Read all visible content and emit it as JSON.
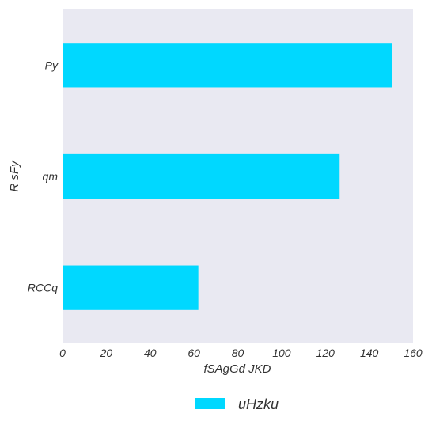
{
  "chart_data": {
    "type": "bar",
    "orientation": "horizontal",
    "categories": [
      "Py",
      "qm",
      "RCCq"
    ],
    "series": [
      {
        "name": "uHzku",
        "values": [
          150.5,
          126.5,
          62
        ]
      }
    ],
    "xlabel": "fSAgGd  JKD",
    "ylabel": "R sFy",
    "xlim": [
      0,
      160
    ],
    "xticks": [
      0,
      20,
      40,
      60,
      80,
      100,
      120,
      140,
      160
    ],
    "grid": false,
    "legend": "bottom-center",
    "colors": {
      "bar": "#00d8ff",
      "plot_background": "#e9e9f2",
      "text": "#333333"
    }
  }
}
